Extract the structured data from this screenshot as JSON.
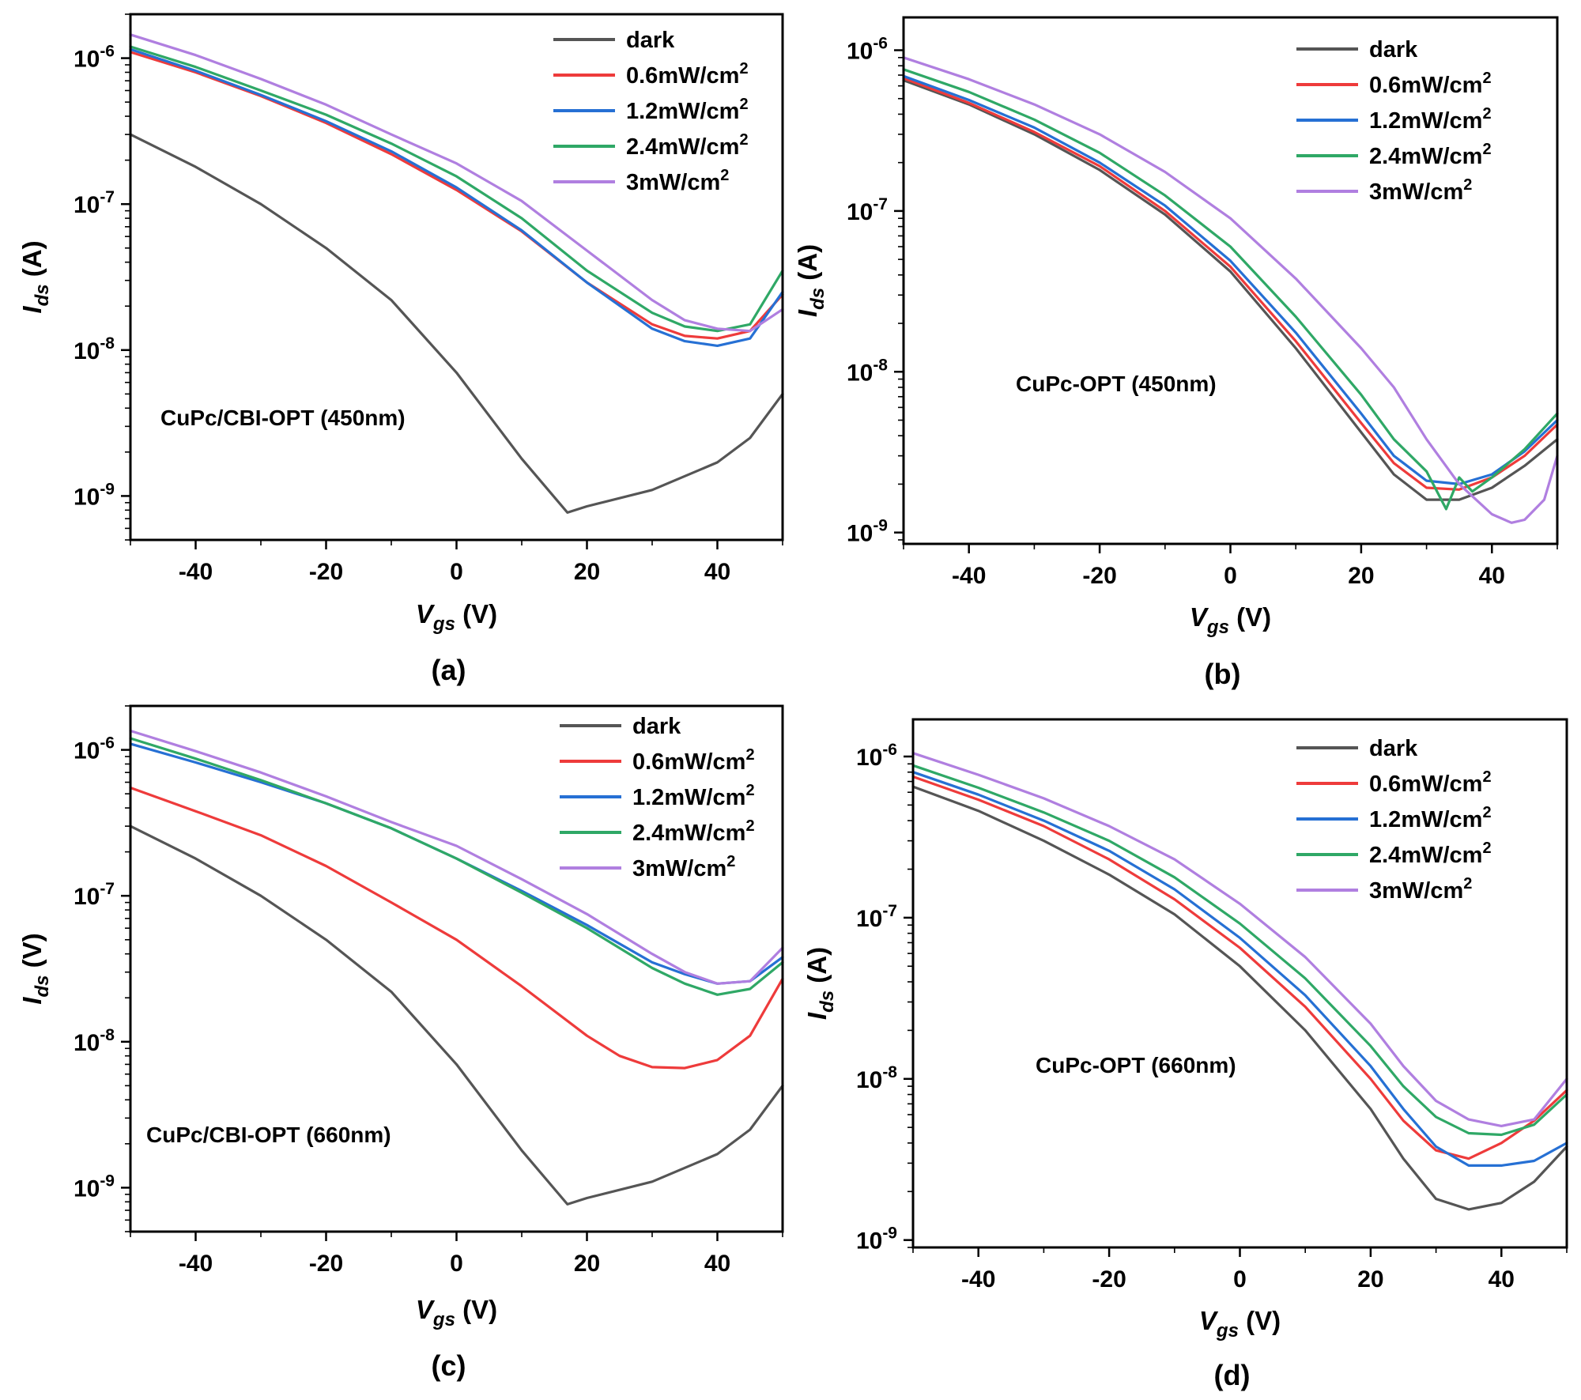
{
  "colors": {
    "dark": "#555555",
    "0.6mW/cm2": "#ee3b3b",
    "1.2mW/cm2": "#2670d4",
    "2.4mW/cm2": "#2fa866",
    "3mW/cm2": "#b07fe0"
  },
  "legend_entries": [
    {
      "key": "dark",
      "text": "dark",
      "sup": ""
    },
    {
      "key": "0.6mW/cm2",
      "text": "0.6mW/cm",
      "sup": "2"
    },
    {
      "key": "1.2mW/cm2",
      "text": "1.2mW/cm",
      "sup": "2"
    },
    {
      "key": "2.4mW/cm2",
      "text": "2.4mW/cm",
      "sup": "2"
    },
    {
      "key": "3mW/cm2",
      "text": "3mW/cm",
      "sup": "2"
    }
  ],
  "chart_data": [
    {
      "type": "line",
      "panel_label": "(a)",
      "annotation": "CuPc/CBI-OPT (450nm)",
      "xlabel": {
        "main": "V",
        "sub": "gs",
        "unit": " (V)"
      },
      "ylabel": {
        "main": "I",
        "sub": "ds",
        "unit": " (A)"
      },
      "xlim": [
        -50,
        50
      ],
      "ylim": [
        5e-10,
        2e-06
      ],
      "yscale": "log",
      "xticks": [
        -40,
        -20,
        0,
        20,
        40
      ],
      "xtick_labels": [
        "-40",
        "-20",
        "0",
        "20",
        "40"
      ],
      "yticks": [
        1e-09,
        1e-08,
        1e-07,
        1e-06
      ],
      "ytick_labels": [
        {
          "base": "10",
          "exp": "-9"
        },
        {
          "base": "10",
          "exp": "-8"
        },
        {
          "base": "10",
          "exp": "-7"
        },
        {
          "base": "10",
          "exp": "-6"
        }
      ],
      "series": [
        {
          "name": "dark",
          "x": [
            -50,
            -40,
            -30,
            -20,
            -10,
            0,
            10,
            17,
            20,
            30,
            40,
            45,
            50
          ],
          "y": [
            3e-07,
            1.8e-07,
            1e-07,
            5e-08,
            2.2e-08,
            7e-09,
            1.8e-09,
            7.7e-10,
            8.5e-10,
            1.1e-09,
            1.7e-09,
            2.5e-09,
            5e-09
          ]
        },
        {
          "name": "0.6mW/cm2",
          "x": [
            -50,
            -40,
            -30,
            -20,
            -10,
            0,
            10,
            20,
            30,
            35,
            40,
            45,
            50
          ],
          "y": [
            1.1e-06,
            8e-07,
            5.5e-07,
            3.6e-07,
            2.2e-07,
            1.25e-07,
            6.5e-08,
            2.9e-08,
            1.5e-08,
            1.25e-08,
            1.2e-08,
            1.35e-08,
            2.4e-08
          ]
        },
        {
          "name": "1.2mW/cm2",
          "x": [
            -50,
            -40,
            -30,
            -20,
            -10,
            0,
            10,
            20,
            30,
            35,
            40,
            45,
            50
          ],
          "y": [
            1.15e-06,
            8.2e-07,
            5.6e-07,
            3.7e-07,
            2.3e-07,
            1.3e-07,
            6.6e-08,
            2.9e-08,
            1.4e-08,
            1.15e-08,
            1.07e-08,
            1.2e-08,
            2.5e-08
          ]
        },
        {
          "name": "2.4mW/cm2",
          "x": [
            -50,
            -40,
            -30,
            -20,
            -10,
            0,
            10,
            20,
            30,
            35,
            40,
            45,
            50
          ],
          "y": [
            1.2e-06,
            8.7e-07,
            6e-07,
            4.1e-07,
            2.6e-07,
            1.55e-07,
            8e-08,
            3.5e-08,
            1.8e-08,
            1.45e-08,
            1.35e-08,
            1.5e-08,
            3.5e-08
          ]
        },
        {
          "name": "3mW/cm2",
          "x": [
            -50,
            -40,
            -30,
            -20,
            -10,
            0,
            10,
            20,
            30,
            35,
            40,
            45,
            50
          ],
          "y": [
            1.45e-06,
            1.05e-06,
            7.2e-07,
            4.8e-07,
            3e-07,
            1.9e-07,
            1.05e-07,
            4.8e-08,
            2.2e-08,
            1.6e-08,
            1.4e-08,
            1.35e-08,
            1.9e-08
          ]
        }
      ]
    },
    {
      "type": "line",
      "panel_label": "(b)",
      "annotation": "CuPc-OPT (450nm)",
      "xlabel": {
        "main": "V",
        "sub": "gs",
        "unit": " (V)"
      },
      "ylabel": {
        "main": "I",
        "sub": "ds",
        "unit": " (A)"
      },
      "xlim": [
        -50,
        50
      ],
      "ylim": [
        8.5e-10,
        1.6e-06
      ],
      "yscale": "log",
      "xticks": [
        -40,
        -20,
        0,
        20,
        40
      ],
      "xtick_labels": [
        "-40",
        "-20",
        "0",
        "20",
        "40"
      ],
      "yticks": [
        1e-09,
        1e-08,
        1e-07,
        1e-06
      ],
      "ytick_labels": [
        {
          "base": "10",
          "exp": "-9"
        },
        {
          "base": "10",
          "exp": "-8"
        },
        {
          "base": "10",
          "exp": "-7"
        },
        {
          "base": "10",
          "exp": "-6"
        }
      ],
      "series": [
        {
          "name": "dark",
          "x": [
            -50,
            -40,
            -30,
            -20,
            -10,
            0,
            10,
            20,
            25,
            30,
            35,
            40,
            45,
            50
          ],
          "y": [
            6.5e-07,
            4.6e-07,
            3e-07,
            1.8e-07,
            9.5e-08,
            4.2e-08,
            1.4e-08,
            4.2e-09,
            2.3e-09,
            1.6e-09,
            1.6e-09,
            1.9e-09,
            2.6e-09,
            3.8e-09
          ]
        },
        {
          "name": "0.6mW/cm2",
          "x": [
            -50,
            -40,
            -30,
            -20,
            -10,
            0,
            10,
            20,
            25,
            30,
            35,
            40,
            45,
            50
          ],
          "y": [
            6.7e-07,
            4.7e-07,
            3.1e-07,
            1.9e-07,
            1e-07,
            4.5e-08,
            1.55e-08,
            4.8e-09,
            2.7e-09,
            1.9e-09,
            1.85e-09,
            2.2e-09,
            3e-09,
            4.7e-09
          ]
        },
        {
          "name": "1.2mW/cm2",
          "x": [
            -50,
            -40,
            -30,
            -20,
            -10,
            0,
            10,
            20,
            25,
            30,
            35,
            40,
            45,
            50
          ],
          "y": [
            6.9e-07,
            4.9e-07,
            3.3e-07,
            2e-07,
            1.08e-07,
            4.9e-08,
            1.75e-08,
            5.5e-09,
            3e-09,
            2.1e-09,
            2e-09,
            2.3e-09,
            3.2e-09,
            5e-09
          ]
        },
        {
          "name": "2.4mW/cm2",
          "x": [
            -50,
            -40,
            -30,
            -20,
            -10,
            0,
            10,
            20,
            25,
            30,
            33,
            35,
            37,
            40,
            45,
            50
          ],
          "y": [
            7.6e-07,
            5.5e-07,
            3.7e-07,
            2.3e-07,
            1.25e-07,
            6e-08,
            2.2e-08,
            7.2e-09,
            3.8e-09,
            2.4e-09,
            1.4e-09,
            2.2e-09,
            1.8e-09,
            2.2e-09,
            3.3e-09,
            5.5e-09
          ]
        },
        {
          "name": "3mW/cm2",
          "x": [
            -50,
            -40,
            -30,
            -20,
            -10,
            0,
            10,
            20,
            25,
            30,
            35,
            40,
            43,
            45,
            48,
            50
          ],
          "y": [
            9e-07,
            6.6e-07,
            4.6e-07,
            3e-07,
            1.75e-07,
            9e-08,
            3.8e-08,
            1.4e-08,
            8e-09,
            3.8e-09,
            2e-09,
            1.3e-09,
            1.15e-09,
            1.2e-09,
            1.6e-09,
            3e-09
          ]
        }
      ]
    },
    {
      "type": "line",
      "panel_label": "(c)",
      "annotation": "CuPc/CBI-OPT (660nm)",
      "xlabel": {
        "main": "V",
        "sub": "gs",
        "unit": " (V)"
      },
      "ylabel": {
        "main": "I",
        "sub": "ds",
        "unit": " (V)"
      },
      "xlim": [
        -50,
        50
      ],
      "ylim": [
        5e-10,
        2e-06
      ],
      "yscale": "log",
      "xticks": [
        -40,
        -20,
        0,
        20,
        40
      ],
      "xtick_labels": [
        "-40",
        "-20",
        "0",
        "20",
        "40"
      ],
      "yticks": [
        1e-09,
        1e-08,
        1e-07,
        1e-06
      ],
      "ytick_labels": [
        {
          "base": "10",
          "exp": "-9"
        },
        {
          "base": "10",
          "exp": "-8"
        },
        {
          "base": "10",
          "exp": "-7"
        },
        {
          "base": "10",
          "exp": "-6"
        }
      ],
      "series": [
        {
          "name": "dark",
          "x": [
            -50,
            -40,
            -30,
            -20,
            -10,
            0,
            10,
            17,
            20,
            30,
            40,
            45,
            50
          ],
          "y": [
            3e-07,
            1.8e-07,
            1e-07,
            5e-08,
            2.2e-08,
            7e-09,
            1.8e-09,
            7.7e-10,
            8.5e-10,
            1.1e-09,
            1.7e-09,
            2.5e-09,
            5e-09
          ]
        },
        {
          "name": "0.6mW/cm2",
          "x": [
            -50,
            -40,
            -30,
            -20,
            -10,
            0,
            10,
            20,
            25,
            30,
            35,
            40,
            45,
            50
          ],
          "y": [
            5.5e-07,
            3.8e-07,
            2.6e-07,
            1.6e-07,
            9e-08,
            5e-08,
            2.4e-08,
            1.1e-08,
            8e-09,
            6.7e-09,
            6.6e-09,
            7.5e-09,
            1.1e-08,
            2.7e-08
          ]
        },
        {
          "name": "1.2mW/cm2",
          "x": [
            -50,
            -40,
            -30,
            -20,
            -10,
            0,
            10,
            20,
            30,
            35,
            40,
            45,
            50
          ],
          "y": [
            1.1e-06,
            8.2e-07,
            6e-07,
            4.3e-07,
            2.9e-07,
            1.8e-07,
            1.08e-07,
            6.3e-08,
            3.5e-08,
            2.9e-08,
            2.5e-08,
            2.6e-08,
            3.8e-08
          ]
        },
        {
          "name": "2.4mW/cm2",
          "x": [
            -50,
            -40,
            -30,
            -20,
            -10,
            0,
            10,
            20,
            30,
            35,
            40,
            45,
            50
          ],
          "y": [
            1.2e-06,
            8.7e-07,
            6.2e-07,
            4.3e-07,
            2.9e-07,
            1.8e-07,
            1.05e-07,
            6e-08,
            3.2e-08,
            2.5e-08,
            2.1e-08,
            2.3e-08,
            3.5e-08
          ]
        },
        {
          "name": "3mW/cm2",
          "x": [
            -50,
            -40,
            -30,
            -20,
            -10,
            0,
            10,
            20,
            30,
            35,
            40,
            45,
            50
          ],
          "y": [
            1.35e-06,
            9.8e-07,
            7e-07,
            4.8e-07,
            3.2e-07,
            2.2e-07,
            1.3e-07,
            7.5e-08,
            4e-08,
            3e-08,
            2.5e-08,
            2.6e-08,
            4.4e-08
          ]
        }
      ]
    },
    {
      "type": "line",
      "panel_label": "(d)",
      "annotation": "CuPc-OPT (660nm)",
      "xlabel": {
        "main": "V",
        "sub": "gs",
        "unit": " (V)"
      },
      "ylabel": {
        "main": "I",
        "sub": "ds",
        "unit": " (A)"
      },
      "xlim": [
        -50,
        50
      ],
      "ylim": [
        9e-10,
        1.7e-06
      ],
      "yscale": "log",
      "xticks": [
        -40,
        -20,
        0,
        20,
        40
      ],
      "xtick_labels": [
        "-40",
        "-20",
        "0",
        "20",
        "40"
      ],
      "yticks": [
        1e-09,
        1e-08,
        1e-07,
        1e-06
      ],
      "ytick_labels": [
        {
          "base": "10",
          "exp": "-9"
        },
        {
          "base": "10",
          "exp": "-8"
        },
        {
          "base": "10",
          "exp": "-7"
        },
        {
          "base": "10",
          "exp": "-6"
        }
      ],
      "series": [
        {
          "name": "dark",
          "x": [
            -50,
            -40,
            -30,
            -20,
            -10,
            0,
            10,
            20,
            25,
            30,
            35,
            40,
            45,
            50
          ],
          "y": [
            6.5e-07,
            4.6e-07,
            3e-07,
            1.85e-07,
            1.05e-07,
            5e-08,
            2e-08,
            6.5e-09,
            3.2e-09,
            1.8e-09,
            1.55e-09,
            1.7e-09,
            2.3e-09,
            3.8e-09
          ]
        },
        {
          "name": "0.6mW/cm2",
          "x": [
            -50,
            -40,
            -30,
            -20,
            -10,
            0,
            10,
            20,
            25,
            30,
            35,
            40,
            45,
            50
          ],
          "y": [
            7.5e-07,
            5.4e-07,
            3.7e-07,
            2.3e-07,
            1.3e-07,
            6.5e-08,
            2.8e-08,
            1e-08,
            5.5e-09,
            3.6e-09,
            3.2e-09,
            4e-09,
            5.5e-09,
            8.5e-09
          ]
        },
        {
          "name": "1.2mW/cm2",
          "x": [
            -50,
            -40,
            -30,
            -20,
            -10,
            0,
            10,
            20,
            25,
            30,
            35,
            40,
            45,
            50
          ],
          "y": [
            8e-07,
            5.8e-07,
            4e-07,
            2.6e-07,
            1.5e-07,
            7.5e-08,
            3.3e-08,
            1.2e-08,
            6.5e-09,
            3.8e-09,
            2.9e-09,
            2.9e-09,
            3.1e-09,
            4e-09
          ]
        },
        {
          "name": "2.4mW/cm2",
          "x": [
            -50,
            -40,
            -30,
            -20,
            -10,
            0,
            10,
            20,
            25,
            30,
            35,
            40,
            45,
            50
          ],
          "y": [
            8.8e-07,
            6.4e-07,
            4.5e-07,
            3e-07,
            1.78e-07,
            9.2e-08,
            4.2e-08,
            1.6e-08,
            9e-09,
            5.8e-09,
            4.6e-09,
            4.5e-09,
            5.2e-09,
            8e-09
          ]
        },
        {
          "name": "3mW/cm2",
          "x": [
            -50,
            -40,
            -30,
            -20,
            -10,
            0,
            10,
            20,
            25,
            30,
            35,
            40,
            45,
            50
          ],
          "y": [
            1.05e-06,
            7.7e-07,
            5.5e-07,
            3.7e-07,
            2.3e-07,
            1.22e-07,
            5.7e-08,
            2.2e-08,
            1.2e-08,
            7.3e-09,
            5.6e-09,
            5.1e-09,
            5.6e-09,
            1e-08
          ]
        }
      ]
    }
  ]
}
